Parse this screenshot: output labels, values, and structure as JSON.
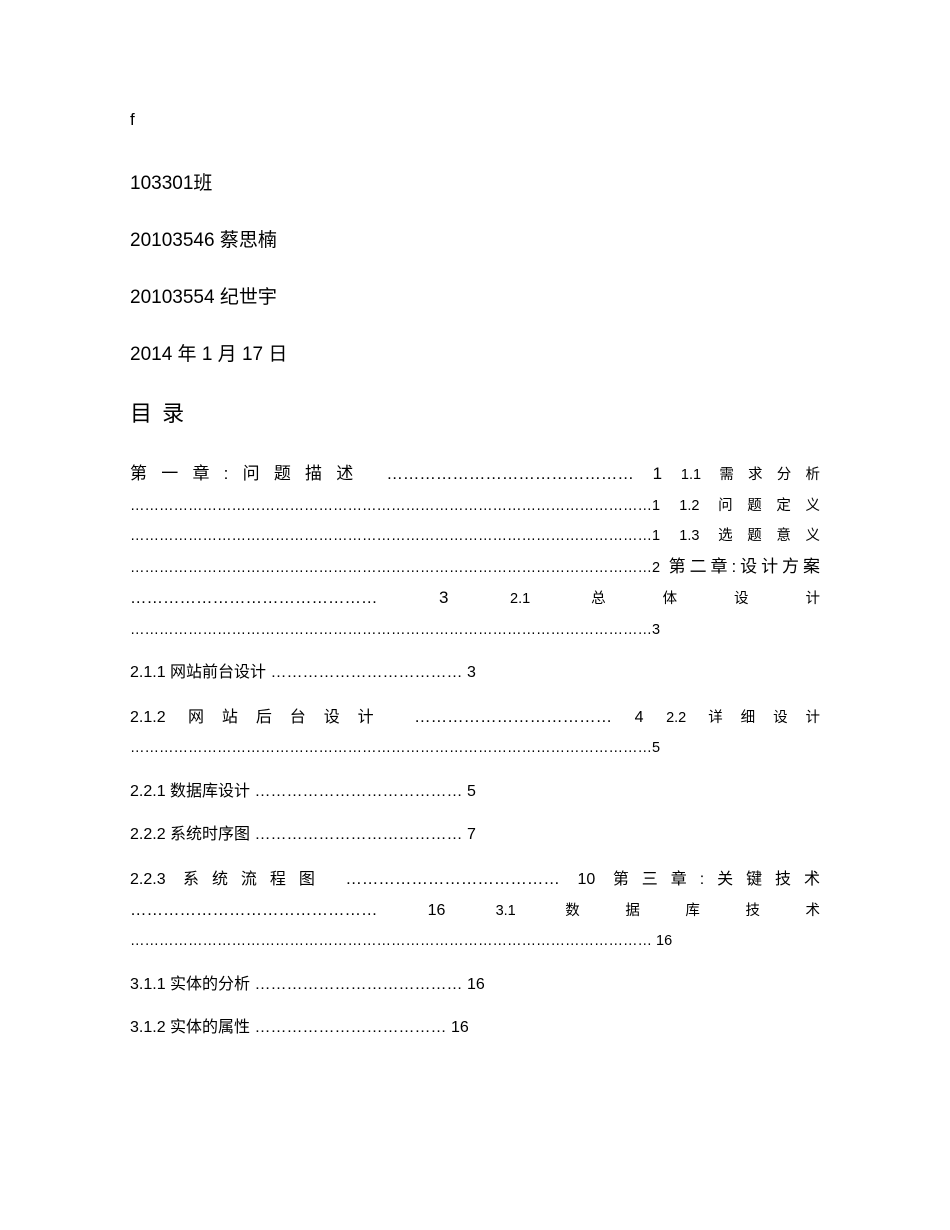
{
  "header": {
    "f": "f",
    "class": "103301班",
    "student1": "20103546 蔡思楠",
    "student2": "20103554 纪世宇",
    "date": "2014 年 1 月 17 日"
  },
  "toc": {
    "title": "目 录",
    "ch1_label": "第一章:问题描述",
    "ch1_page": "1",
    "s1_1_label": "1.1 需求分析",
    "s1_1_page": "1",
    "s1_2_label": "1.2 问题定义",
    "s1_2_page": "1",
    "s1_3_label": "1.3 选题意义",
    "s1_3_page": "2",
    "ch2_label": "第二章:设计方案",
    "ch2_page": "3",
    "s2_1_label": "2.1 总体设计",
    "s2_1_page": "3",
    "s2_1_1_label": "2.1.1 网站前台设计",
    "s2_1_1_page": "3",
    "s2_1_2_label": "2.1.2 网站后台设计",
    "s2_1_2_page": "4",
    "s2_2_label": "2.2 详细设计",
    "s2_2_page": "5",
    "s2_2_1_label": "2.2.1 数据库设计",
    "s2_2_1_page": "5",
    "s2_2_2_label": "2.2.2 系统时序图",
    "s2_2_2_page": "7",
    "s2_2_3_label": "2.2.3 系统流程图",
    "s2_2_3_page": "10",
    "ch3_label": "第三章:关键技术",
    "ch3_page": "16",
    "s3_1_label": "3.1 数据库技术",
    "s3_1_page": "16",
    "s3_1_1_label": "3.1.1 实体的分析",
    "s3_1_1_page": "16",
    "s3_1_2_label": "3.1.2 实体的属性",
    "s3_1_2_page": "16"
  },
  "style": {
    "background_color": "#ffffff",
    "text_color": "#000000",
    "header_fontsize": 19,
    "toc_title_fontsize": 22,
    "body_fontsize": 16.5,
    "sub_fontsize": 14.5
  }
}
